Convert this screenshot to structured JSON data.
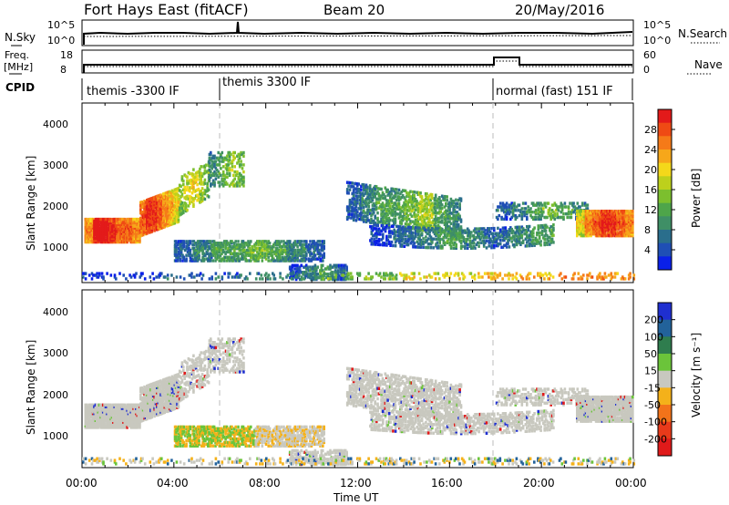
{
  "header": {
    "title": "Fort Hays East (fitACF)",
    "beam": "Beam 20",
    "date": "20/May/2016"
  },
  "nsky_panel": {
    "left_label": "N.Sky",
    "right_label": "N.Search",
    "left_ticks": [
      "10^5",
      "10^0"
    ],
    "right_ticks": [
      "10^5",
      "10^0"
    ]
  },
  "freq_panel": {
    "left_label_1": "Freq.",
    "left_label_2": "[MHz]",
    "right_label": "Nave",
    "left_ticks": [
      "18",
      "8"
    ],
    "right_ticks": [
      "60",
      "0"
    ]
  },
  "cpid": {
    "label": "CPID",
    "segments": [
      {
        "start_h": 0,
        "end_h": 6,
        "name": "themis -3300 IF"
      },
      {
        "start_h": 6,
        "end_h": 18,
        "name": "themis 3300 IF"
      },
      {
        "start_h": 18,
        "end_h": 24,
        "name": "normal (fast) 151 IF"
      }
    ]
  },
  "chart_data": [
    {
      "type": "heatmap",
      "name": "power",
      "ylabel": "Slant Range [km]",
      "yticks": [
        "1000",
        "2000",
        "3000",
        "4000"
      ],
      "ylim": [
        180,
        4500
      ],
      "xlim_hours": [
        0,
        24
      ],
      "colorbar_label": "Power [dB]",
      "colorbar_ticks": [
        "28",
        "24",
        "20",
        "16",
        "12",
        "8",
        "4"
      ],
      "colors": [
        "#0a20e8",
        "#1f4fb5",
        "#2a6e8c",
        "#3f8f66",
        "#4ea54a",
        "#7cbf2e",
        "#bdd01c",
        "#f4d81a",
        "#f6a71a",
        "#f57a18",
        "#ef4a14",
        "#e31a1a"
      ]
    },
    {
      "type": "heatmap",
      "name": "velocity",
      "ylabel": "Slant Range [km]",
      "yticks": [
        "1000",
        "2000",
        "3000",
        "4000"
      ],
      "ylim": [
        180,
        4500
      ],
      "xlim_hours": [
        0,
        24
      ],
      "colorbar_label": "Velocity [m s⁻¹]",
      "colorbar_ticks": [
        "200",
        "100",
        "50",
        "15",
        "-15",
        "-50",
        "-100",
        "-200"
      ],
      "colors": [
        "#1f2fd0",
        "#22629a",
        "#2f7d4e",
        "#6bc43a",
        "#c8c8bf",
        "#f4b11a",
        "#f2731a",
        "#e83a1a",
        "#e01a1a"
      ]
    }
  ],
  "x_axis": {
    "label": "Time UT",
    "ticks": [
      "00:00",
      "04:00",
      "08:00",
      "12:00",
      "16:00",
      "20:00",
      "00:00"
    ]
  }
}
